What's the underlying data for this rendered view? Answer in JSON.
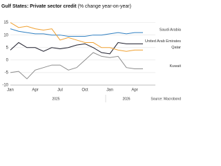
{
  "chart_data": {
    "type": "line",
    "title": "Gulf States: Private sector credit",
    "subtitle": "(% change year-on-year)",
    "source": "Source: Macrobond",
    "categories": [
      "Jan",
      null,
      null,
      "Apr",
      null,
      null,
      "Jul",
      null,
      null,
      "Oct",
      null,
      null,
      "Jan",
      null,
      null,
      "Apr",
      null
    ],
    "year_labels": [
      "2025",
      "2026"
    ],
    "series": [
      {
        "name": "Saudi Arabia",
        "color": "#2f7fc1",
        "values": [
          12.5,
          11.5,
          11,
          10.5,
          10.5,
          10,
          10,
          9.5,
          9.5,
          9.5,
          10,
          10,
          10.5,
          11,
          10.5,
          11,
          11
        ]
      },
      {
        "name": "United Arab Emirates",
        "color": "#1c1c2a",
        "values": [
          4,
          7,
          5,
          5,
          3.5,
          5,
          4.5,
          5,
          6,
          6.5,
          5,
          3,
          2.5,
          7,
          6.5,
          6.5,
          6.5
        ]
      },
      {
        "name": "Qatar",
        "color": "#f0a030",
        "values": [
          15,
          13,
          13.5,
          12.5,
          12,
          12.5,
          8,
          9,
          8,
          7,
          7,
          5,
          5,
          4,
          3.5,
          4,
          4
        ]
      },
      {
        "name": "Kuwait",
        "color": "#8c8c8c",
        "values": [
          -5,
          -4.5,
          -7.5,
          -4,
          -3,
          -2,
          -2,
          -4,
          -3,
          0,
          3,
          1.5,
          1,
          1.5,
          -3,
          -3.5,
          -3.5
        ]
      }
    ],
    "ylim": [
      -10,
      16
    ],
    "yticks": [
      -10,
      -5,
      0,
      5,
      10,
      15
    ],
    "grid": true
  }
}
